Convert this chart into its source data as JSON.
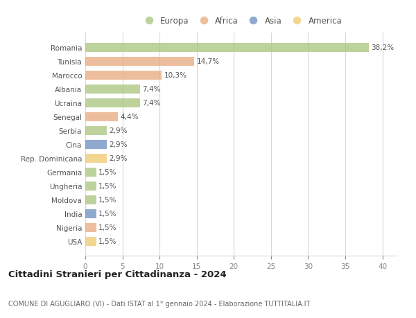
{
  "categories": [
    "Romania",
    "Tunisia",
    "Marocco",
    "Albania",
    "Ucraina",
    "Senegal",
    "Serbia",
    "Cina",
    "Rep. Dominicana",
    "Germania",
    "Ungheria",
    "Moldova",
    "India",
    "Nigeria",
    "USA"
  ],
  "values": [
    38.2,
    14.7,
    10.3,
    7.4,
    7.4,
    4.4,
    2.9,
    2.9,
    2.9,
    1.5,
    1.5,
    1.5,
    1.5,
    1.5,
    1.5
  ],
  "labels": [
    "38,2%",
    "14,7%",
    "10,3%",
    "7,4%",
    "7,4%",
    "4,4%",
    "2,9%",
    "2,9%",
    "2,9%",
    "1,5%",
    "1,5%",
    "1,5%",
    "1,5%",
    "1,5%",
    "1,5%"
  ],
  "continents": [
    "Europa",
    "Africa",
    "Africa",
    "Europa",
    "Europa",
    "Africa",
    "Europa",
    "Asia",
    "America",
    "Europa",
    "Europa",
    "Europa",
    "Asia",
    "Africa",
    "America"
  ],
  "colors": {
    "Europa": "#a8c47a",
    "Africa": "#e8a87c",
    "Asia": "#6b8cbf",
    "America": "#f0c96e"
  },
  "legend_order": [
    "Europa",
    "Africa",
    "Asia",
    "America"
  ],
  "title": "Cittadini Stranieri per Cittadinanza - 2024",
  "subtitle": "COMUNE DI AGUGLIARO (VI) - Dati ISTAT al 1° gennaio 2024 - Elaborazione TUTTITALIA.IT",
  "xlim": [
    0,
    42
  ],
  "xticks": [
    0,
    5,
    10,
    15,
    20,
    25,
    30,
    35,
    40
  ],
  "background_color": "#ffffff",
  "grid_color": "#d8d8d8",
  "bar_alpha": 0.75,
  "bar_height": 0.65
}
